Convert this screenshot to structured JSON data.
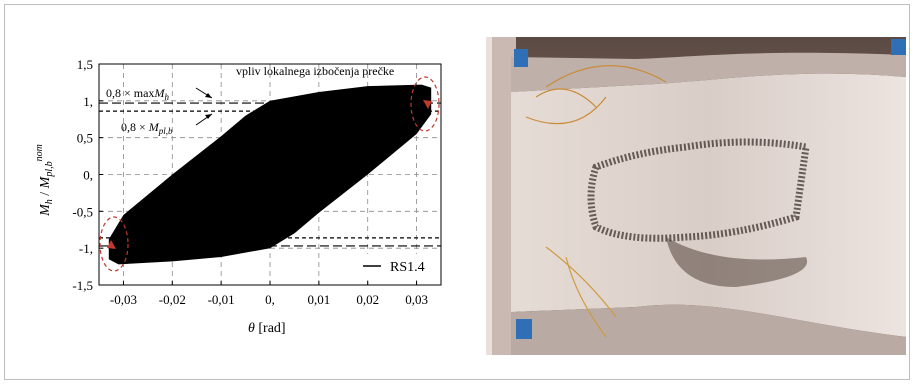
{
  "chart_data": {
    "type": "area",
    "xlabel": "θ [rad]",
    "ylabel": "Mh / Mpl,b^nom",
    "xlim": [
      -0.035,
      0.035
    ],
    "ylim": [
      -1.5,
      1.5
    ],
    "xticks": [
      -0.03,
      -0.02,
      -0.01,
      0,
      0.01,
      0.02,
      0.03
    ],
    "xtick_labels": [
      "-0,03",
      "-0,02",
      "-0,01",
      "0,",
      "0,01",
      "0,02",
      "0,03"
    ],
    "yticks": [
      1.5,
      1,
      0.5,
      0,
      -0.5,
      -1,
      -1.5
    ],
    "ytick_labels": [
      "1,5",
      "1,",
      "0,5",
      "0,",
      "-0,5",
      "-1,",
      "-1,5"
    ],
    "grid": true,
    "legend": {
      "position": "bottom-right",
      "entries": [
        "RS1.4"
      ]
    },
    "hysteresis_envelope": {
      "upper": [
        [
          -0.033,
          -0.88
        ],
        [
          -0.03,
          -0.55
        ],
        [
          -0.02,
          0.0
        ],
        [
          -0.01,
          0.52
        ],
        [
          -0.005,
          0.8
        ],
        [
          0.0,
          1.0
        ],
        [
          0.01,
          1.12
        ],
        [
          0.02,
          1.2
        ],
        [
          0.031,
          1.22
        ],
        [
          0.033,
          1.18
        ]
      ],
      "lower": [
        [
          0.033,
          0.82
        ],
        [
          0.03,
          0.55
        ],
        [
          0.02,
          0.0
        ],
        [
          0.01,
          -0.52
        ],
        [
          0.005,
          -0.8
        ],
        [
          0.0,
          -1.0
        ],
        [
          -0.01,
          -1.12
        ],
        [
          -0.02,
          -1.18
        ],
        [
          -0.031,
          -1.22
        ],
        [
          -0.033,
          -1.15
        ]
      ]
    },
    "reference_lines": [
      {
        "label": "0,8 × maxMh",
        "value": 0.97,
        "style": "long-dash"
      },
      {
        "label": "0,8 × Mpl,b",
        "value": 0.86,
        "style": "short-dash"
      },
      {
        "label": "",
        "value": -0.97,
        "style": "long-dash"
      },
      {
        "label": "",
        "value": -0.86,
        "style": "short-dash"
      }
    ],
    "annotation": "vpliv lokalnega izbočenja prečke"
  },
  "colors": {
    "series": "#000000",
    "annotation": "#c0392b",
    "grid": "#8a8a8a"
  },
  "photo": {
    "description_icon": "test-specimen-photo"
  }
}
